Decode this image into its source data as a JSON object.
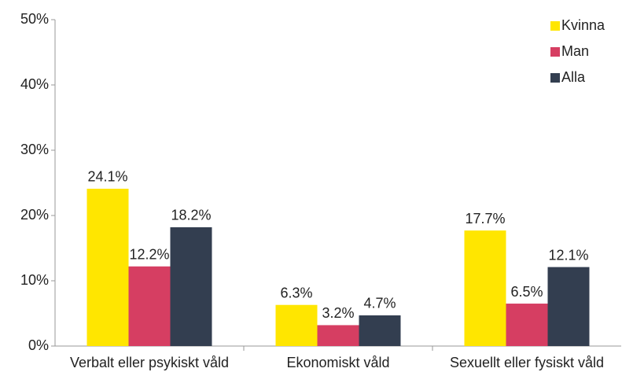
{
  "chart_data": {
    "type": "bar",
    "categories": [
      "Verbalt eller psykiskt våld",
      "Ekonomiskt våld",
      "Sexuellt eller fysiskt våld"
    ],
    "series": [
      {
        "name": "Kvinna",
        "color": "#ffe600",
        "values": [
          24.1,
          6.3,
          17.7
        ],
        "value_labels": [
          "24.1%",
          "6.3%",
          "17.7%"
        ]
      },
      {
        "name": "Man",
        "color": "#d63e62",
        "values": [
          12.2,
          3.2,
          6.5
        ],
        "value_labels": [
          "12.2%",
          "3.2%",
          "6.5%"
        ]
      },
      {
        "name": "Alla",
        "color": "#333e50",
        "values": [
          18.2,
          4.7,
          12.1
        ],
        "value_labels": [
          "18.2%",
          "4.7%",
          "12.1%"
        ]
      }
    ],
    "ylim": [
      0,
      50
    ],
    "yticks": [
      {
        "value": 0,
        "label": "0%"
      },
      {
        "value": 10,
        "label": "10%"
      },
      {
        "value": 20,
        "label": "20%"
      },
      {
        "value": 30,
        "label": "30%"
      },
      {
        "value": 40,
        "label": "40%"
      },
      {
        "value": 50,
        "label": "50%"
      }
    ],
    "legend": "top-right"
  }
}
